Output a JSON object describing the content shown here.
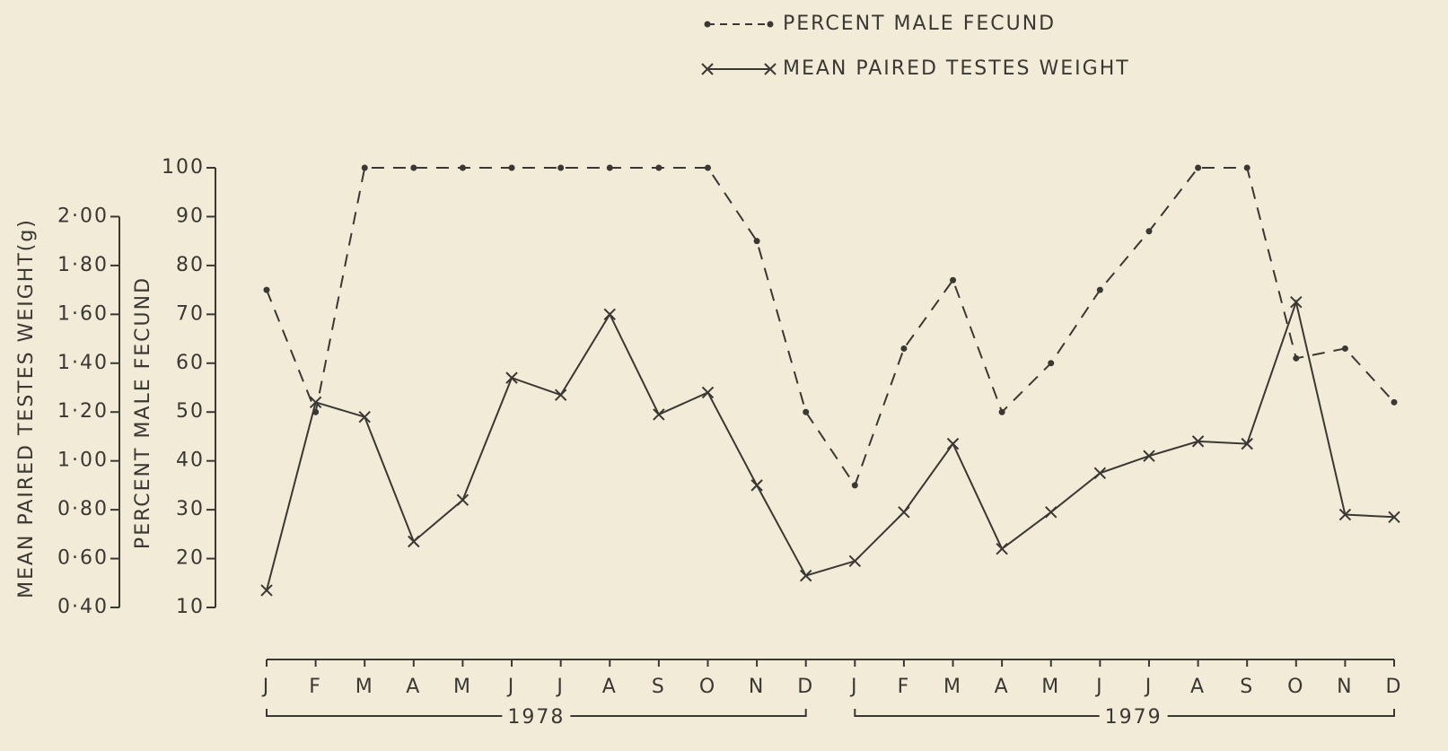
{
  "chart_data": {
    "type": "line",
    "legend_labels": [
      "PERCENT MALE FECUND",
      "MEAN PAIRED TESTES WEIGHT"
    ],
    "legend": "top",
    "ylabel": "PERCENT MALE FECUND",
    "y2label": "MEAN PAIRED TESTES WEIGHT(g)",
    "categories": [
      "J",
      "F",
      "M",
      "A",
      "M",
      "J",
      "J",
      "A",
      "S",
      "O",
      "N",
      "D",
      "J",
      "F",
      "M",
      "A",
      "M",
      "J",
      "J",
      "A",
      "S",
      "O",
      "N",
      "D"
    ],
    "year_groups": [
      "1978",
      "1979"
    ],
    "ylim": [
      10,
      100
    ],
    "yticks": [
      10,
      20,
      30,
      40,
      50,
      60,
      70,
      80,
      90,
      100
    ],
    "y2lim": [
      0.4,
      2.2
    ],
    "y2ticks": [
      {
        "value": 0.4,
        "label": "0·40"
      },
      {
        "value": 0.6,
        "label": "0·60"
      },
      {
        "value": 0.8,
        "label": "0·80"
      },
      {
        "value": 1.0,
        "label": "1·00"
      },
      {
        "value": 1.2,
        "label": "1·20"
      },
      {
        "value": 1.4,
        "label": "1·40"
      },
      {
        "value": 1.6,
        "label": "1·60"
      },
      {
        "value": 1.8,
        "label": "1·80"
      },
      {
        "value": 2.0,
        "label": "2·00"
      }
    ],
    "series": [
      {
        "name": "PERCENT MALE FECUND",
        "color": "#3a3833",
        "dashed": true,
        "marker": "dot",
        "values": [
          75,
          50,
          100,
          100,
          100,
          100,
          100,
          100,
          100,
          100,
          85,
          50,
          35,
          63,
          77,
          50,
          60,
          75,
          87,
          100,
          100,
          61,
          63,
          52
        ]
      },
      {
        "name": "MEAN PAIRED TESTES WEIGHT",
        "color": "#3a3833",
        "dashed": false,
        "marker": "x",
        "axis": "y2",
        "values": [
          0.47,
          1.24,
          1.18,
          0.67,
          0.84,
          1.34,
          1.27,
          1.6,
          1.19,
          1.28,
          0.9,
          0.53,
          0.59,
          0.79,
          1.07,
          0.64,
          0.79,
          0.95,
          1.02,
          1.08,
          1.07,
          1.65,
          0.78,
          0.77
        ]
      }
    ]
  }
}
